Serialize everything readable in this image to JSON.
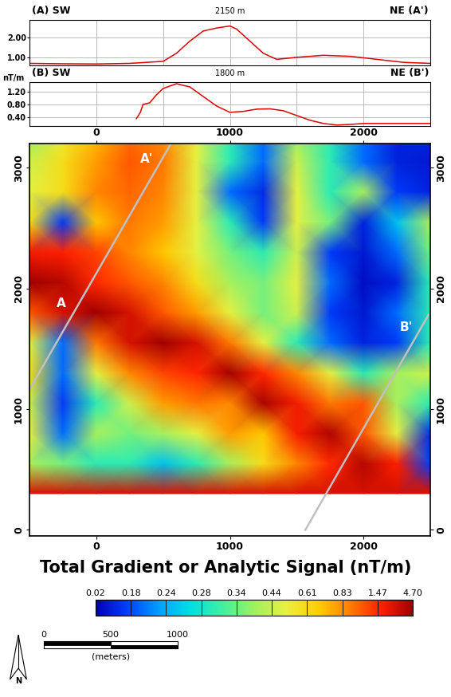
{
  "chart_data": [
    {
      "type": "line",
      "title": "(A) SW",
      "subtitle": "2150 m",
      "end_label": "NE (A')",
      "x": [
        -500,
        -250,
        0,
        250,
        500,
        600,
        700,
        800,
        900,
        1000,
        1050,
        1150,
        1250,
        1350,
        1500,
        1700,
        1900,
        2100,
        2300,
        2500
      ],
      "values": [
        0.7,
        0.68,
        0.67,
        0.7,
        0.8,
        1.2,
        1.8,
        2.3,
        2.45,
        2.55,
        2.4,
        1.8,
        1.2,
        0.9,
        1.0,
        1.1,
        1.05,
        0.9,
        0.75,
        0.7
      ],
      "color": "#e00000",
      "xlim": [
        -500,
        2500
      ],
      "xticks": [
        0,
        500,
        1000,
        1500,
        2000
      ],
      "ylim": [
        0.6,
        2.85
      ],
      "yticks": [
        {
          "value": 1,
          "label": "1.00"
        },
        {
          "value": 2,
          "label": "2.00"
        }
      ],
      "grid": true,
      "tick_labels": "y"
    },
    {
      "type": "line",
      "title": "(B) SW",
      "subtitle": "1800 m",
      "end_label": "NE (B')",
      "y_label": "nT/m",
      "x": [
        300,
        330,
        350,
        400,
        450,
        500,
        600,
        700,
        800,
        900,
        1000,
        1100,
        1200,
        1300,
        1400,
        1500,
        1600,
        1700,
        1800,
        1900,
        2000,
        2500
      ],
      "values": [
        0.35,
        0.55,
        0.8,
        0.85,
        1.1,
        1.3,
        1.45,
        1.35,
        1.05,
        0.75,
        0.55,
        0.58,
        0.65,
        0.66,
        0.6,
        0.45,
        0.3,
        0.2,
        0.15,
        0.17,
        0.2,
        0.2
      ],
      "color": "#e00000",
      "xlim": [
        -500,
        2500
      ],
      "xticks": [
        0,
        500,
        1000,
        1500,
        2000
      ],
      "ylim": [
        0.12,
        1.5
      ],
      "yticks": [
        {
          "value": 0.4,
          "label": "0.40"
        },
        {
          "value": 0.8,
          "label": "0.80"
        },
        {
          "value": 1.2,
          "label": "1.20"
        }
      ],
      "grid": true,
      "tick_labels": "y"
    },
    {
      "type": "heatmap",
      "x": [
        -500,
        -250,
        0,
        250,
        500,
        750,
        1000,
        1250,
        1500,
        1750,
        2000,
        2250,
        2500
      ],
      "y": [
        300,
        550,
        800,
        1050,
        1300,
        1550,
        1800,
        2050,
        2300,
        2550,
        2800,
        3050,
        3200
      ],
      "cells": [
        [
          3.0,
          3.0,
          3.0,
          3.0,
          3.0,
          3.0,
          3.0,
          3.0,
          3.0,
          3.0,
          3.0,
          3.0,
          3.0
        ],
        [
          0.4,
          0.35,
          0.3,
          0.3,
          0.25,
          0.3,
          0.4,
          0.6,
          0.9,
          1.5,
          4.0,
          1.8,
          0.15
        ],
        [
          0.5,
          0.2,
          0.4,
          0.35,
          0.4,
          0.5,
          0.8,
          0.7,
          2.0,
          4.2,
          1.2,
          0.5,
          0.12
        ],
        [
          0.45,
          0.15,
          0.3,
          0.45,
          0.8,
          1.0,
          0.9,
          4.3,
          2.2,
          1.0,
          1.2,
          0.4,
          0.3
        ],
        [
          0.6,
          0.2,
          0.5,
          0.9,
          1.3,
          1.6,
          4.5,
          1.6,
          0.9,
          0.5,
          0.3,
          0.4,
          0.45
        ],
        [
          0.5,
          0.2,
          1.0,
          3.0,
          4.6,
          3.0,
          1.0,
          0.5,
          0.3,
          0.2,
          0.1,
          0.15,
          0.3
        ],
        [
          1.2,
          3.0,
          4.7,
          3.0,
          1.2,
          0.8,
          0.5,
          0.35,
          0.45,
          0.15,
          0.08,
          0.2,
          0.3
        ],
        [
          4.7,
          4.0,
          1.5,
          1.2,
          0.9,
          0.6,
          0.4,
          0.35,
          0.5,
          0.2,
          0.05,
          0.1,
          0.3
        ],
        [
          2.0,
          1.8,
          1.3,
          0.9,
          0.7,
          0.5,
          0.35,
          0.3,
          0.45,
          0.15,
          0.08,
          0.2,
          0.35
        ],
        [
          0.6,
          0.15,
          0.7,
          1.0,
          0.8,
          0.5,
          0.3,
          0.15,
          0.5,
          0.35,
          0.1,
          0.25,
          0.4
        ],
        [
          0.5,
          0.6,
          0.9,
          1.1,
          0.9,
          0.5,
          0.2,
          0.12,
          0.5,
          0.3,
          0.4,
          0.15,
          0.1
        ],
        [
          0.45,
          0.6,
          0.8,
          1.2,
          1.0,
          0.5,
          0.3,
          0.2,
          0.45,
          0.3,
          0.2,
          0.1,
          0.08
        ],
        [
          0.4,
          0.55,
          0.75,
          1.1,
          0.9,
          0.5,
          0.3,
          0.2,
          0.4,
          0.3,
          0.2,
          0.1,
          0.1
        ]
      ],
      "xlim": [
        -500,
        2500
      ],
      "xticks": [
        0,
        1000,
        2000
      ],
      "ylim": [
        -50,
        3200
      ],
      "yticks": [
        0,
        1000,
        2000,
        3000
      ],
      "colorbar": {
        "label": "Total Gradient or Analytic Signal (nT/m)",
        "range": [
          0.02,
          4.7
        ],
        "ticks": [
          0.02,
          0.18,
          0.24,
          0.28,
          0.34,
          0.44,
          0.61,
          0.83,
          1.47,
          {
            "value": 4.7,
            "label": "4.70"
          }
        ]
      },
      "profiles": [
        {
          "start_label": "A",
          "end_label": "A'",
          "x": [
            -500,
            554
          ],
          "y": [
            1163,
            3190
          ],
          "color": "#c0c0c0"
        },
        {
          "end_label": "B'",
          "x": [
            1565,
            2488
          ],
          "y": [
            0,
            1784
          ],
          "color": "#c0c0c0"
        }
      ]
    }
  ],
  "scale_bar": {
    "ticks": [
      0,
      500,
      1000
    ],
    "label": "(meters)"
  },
  "north_arrow": "N"
}
